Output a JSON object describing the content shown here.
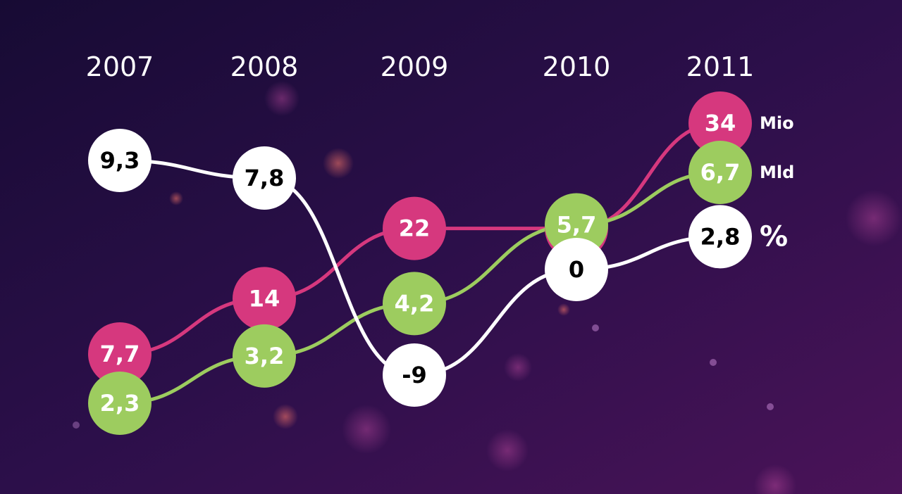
{
  "chart_data": {
    "type": "line",
    "categories": [
      "2007",
      "2008",
      "2009",
      "2010",
      "2011"
    ],
    "series": [
      {
        "name": "Mio",
        "color": "#d6387e",
        "values": [
          7.7,
          14,
          22,
          22,
          34
        ],
        "value_labels": [
          "7,7",
          "14",
          "22",
          "22",
          "34"
        ]
      },
      {
        "name": "Mld",
        "color": "#9dcc5f",
        "values": [
          2.3,
          3.2,
          4.2,
          5.7,
          6.7
        ],
        "value_labels": [
          "2,3",
          "3,2",
          "4,2",
          "5,7",
          "6,7"
        ]
      },
      {
        "name": "%",
        "color": "#ffffff",
        "values": [
          9.3,
          7.8,
          -9,
          0,
          2.8
        ],
        "value_labels": [
          "9,3",
          "7,8",
          "-9",
          "0",
          "2,8"
        ]
      }
    ]
  }
}
